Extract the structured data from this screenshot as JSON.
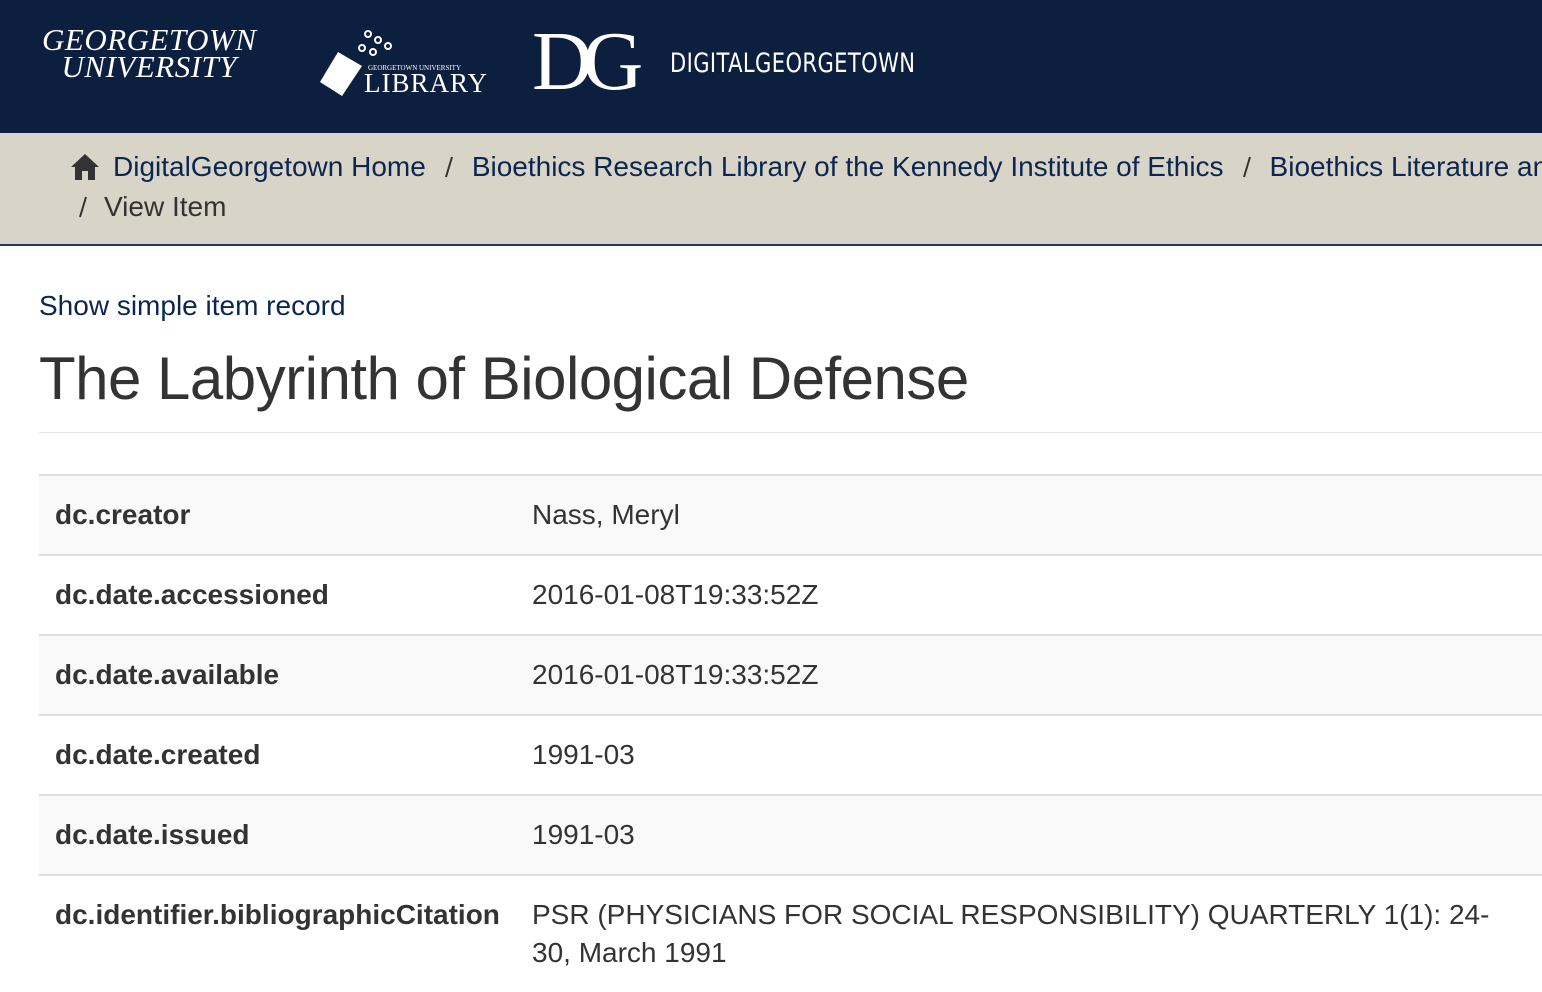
{
  "header": {
    "university_logo": [
      "GEORGETOWN",
      "UNIVERSITY"
    ],
    "library_logo": {
      "small": "GEORGETOWN UNIVERSITY",
      "main": "LIBRARY"
    },
    "dg_logo": "DG",
    "site_name": "DIGITALGEORGETOWN"
  },
  "breadcrumb": [
    "DigitalGeorgetown Home",
    "Bioethics Research Library of the Kennedy Institute of Ethics",
    "Bioethics Literature an",
    "View Item"
  ],
  "show_simple_link": "Show simple item record",
  "title": "The Labyrinth of Biological Defense",
  "table": {
    "rows": [
      [
        "dc.creator",
        "Nass, Meryl"
      ],
      [
        "dc.date.accessioned",
        "2016-01-08T19:33:52Z"
      ],
      [
        "dc.date.available",
        "2016-01-08T19:33:52Z"
      ],
      [
        "dc.date.created",
        "1991-03"
      ],
      [
        "dc.date.issued",
        "1991-03"
      ],
      [
        "dc.identifier.bibliographicCitation",
        "PSR (PHYSICIANS FOR SOCIAL RESPONSIBILITY) QUARTERLY 1(1): 24-30, March 1991"
      ]
    ]
  }
}
